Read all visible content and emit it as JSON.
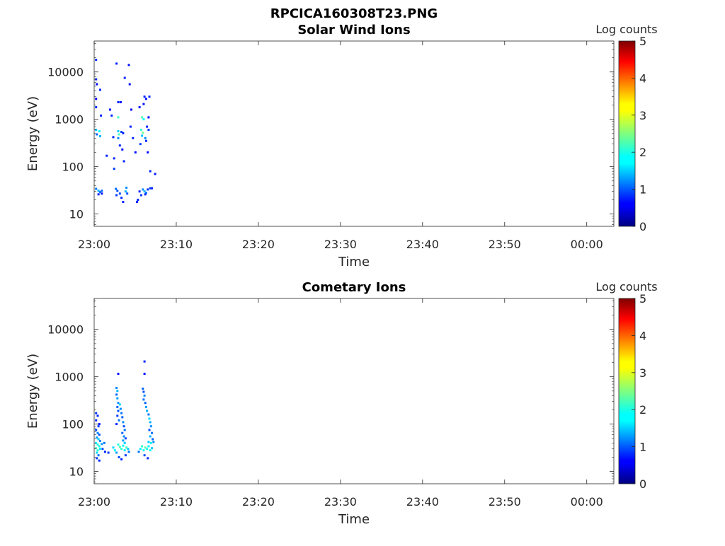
{
  "figure_title": "RPCICA160308T23.PNG",
  "chart_data": [
    {
      "type": "heatmap",
      "title": "Solar Wind Ions",
      "xlabel": "Time",
      "ylabel": "Energy (eV)",
      "x_ticks": [
        "23:00",
        "23:10",
        "23:20",
        "23:30",
        "23:40",
        "23:50",
        "00:00"
      ],
      "y_ticks": [
        "10",
        "100",
        "1000",
        "10000"
      ],
      "y_scale": "log",
      "ylim": [
        5.5,
        45000
      ],
      "xlim_minutes": [
        0,
        63.3
      ],
      "colorbar": {
        "label": "Log counts",
        "range": [
          0,
          5
        ],
        "ticks": [
          "0",
          "1",
          "2",
          "3",
          "4",
          "5"
        ],
        "colormap": "jet"
      },
      "cells_desc": "[time_minutes_after_23:00, energy_eV, log_counts]",
      "cells": [
        [
          0.1,
          18000,
          0.8
        ],
        [
          0.1,
          7000,
          0.8
        ],
        [
          0.2,
          5500,
          0.6
        ],
        [
          0.6,
          4200,
          0.8
        ],
        [
          0.1,
          2700,
          0.6
        ],
        [
          0.1,
          1800,
          0.8
        ],
        [
          0.7,
          1200,
          0.8
        ],
        [
          0.1,
          600,
          1.6
        ],
        [
          0.5,
          560,
          1.9
        ],
        [
          0.2,
          480,
          1.1
        ],
        [
          0.6,
          440,
          1.5
        ],
        [
          0.1,
          34,
          1.2
        ],
        [
          0.4,
          31,
          1.5
        ],
        [
          0.6,
          29,
          1.2
        ],
        [
          0.8,
          31,
          1.1
        ],
        [
          0.4,
          26,
          0.8
        ],
        [
          0.8,
          27,
          0.7
        ],
        [
          1.4,
          170,
          0.8
        ],
        [
          1.8,
          1600,
          0.7
        ],
        [
          2.0,
          1200,
          0.8
        ],
        [
          2.2,
          420,
          0.8
        ],
        [
          2.3,
          150,
          0.8
        ],
        [
          2.3,
          90,
          0.9
        ],
        [
          2.6,
          15000,
          0.8
        ],
        [
          2.8,
          2300,
          0.8
        ],
        [
          2.8,
          1100,
          2.2
        ],
        [
          2.8,
          560,
          1.6
        ],
        [
          2.9,
          480,
          2.2
        ],
        [
          2.8,
          400,
          1.3
        ],
        [
          3.1,
          2300,
          0.7
        ],
        [
          3.2,
          540,
          0.9
        ],
        [
          3.4,
          510,
          0.8
        ],
        [
          3.0,
          280,
          0.8
        ],
        [
          3.3,
          230,
          0.7
        ],
        [
          3.5,
          130,
          0.8
        ],
        [
          2.5,
          34,
          1.2
        ],
        [
          2.7,
          31,
          1.0
        ],
        [
          2.6,
          25,
          0.9
        ],
        [
          3.0,
          27,
          1.0
        ],
        [
          3.2,
          22,
          0.8
        ],
        [
          3.4,
          18,
          0.8
        ],
        [
          3.8,
          36,
          1.3
        ],
        [
          3.7,
          30,
          1.5
        ],
        [
          3.9,
          27,
          1.0
        ],
        [
          3.6,
          7500,
          0.8
        ],
        [
          4.1,
          14000,
          0.7
        ],
        [
          4.2,
          5500,
          0.7
        ],
        [
          4.4,
          1600,
          0.6
        ],
        [
          4.3,
          700,
          0.8
        ],
        [
          4.6,
          400,
          0.8
        ],
        [
          4.9,
          200,
          0.7
        ],
        [
          5.2,
          20,
          0.8
        ],
        [
          5.1,
          18,
          0.8
        ],
        [
          5.4,
          30,
          0.8
        ],
        [
          5.6,
          25,
          0.9
        ],
        [
          5.5,
          300,
          0.9
        ],
        [
          5.4,
          1800,
          0.7
        ],
        [
          5.7,
          1100,
          2.3
        ],
        [
          5.9,
          1000,
          1.9
        ],
        [
          5.6,
          600,
          2.1
        ],
        [
          5.8,
          520,
          2.4
        ],
        [
          5.7,
          450,
          1.6
        ],
        [
          6.1,
          400,
          1.3
        ],
        [
          5.9,
          2100,
          0.7
        ],
        [
          6.0,
          3000,
          0.8
        ],
        [
          6.2,
          2700,
          0.7
        ],
        [
          6.3,
          700,
          0.8
        ],
        [
          6.5,
          600,
          0.9
        ],
        [
          6.2,
          350,
          0.8
        ],
        [
          6.4,
          200,
          0.7
        ],
        [
          6.5,
          1100,
          0.6
        ],
        [
          5.8,
          33,
          1.3
        ],
        [
          6.0,
          30,
          1.5
        ],
        [
          6.2,
          28,
          1.2
        ],
        [
          6.4,
          33,
          0.9
        ],
        [
          6.7,
          35,
          0.9
        ],
        [
          6.9,
          35,
          0.8
        ],
        [
          6.6,
          3000,
          0.8
        ],
        [
          6.7,
          80,
          0.8
        ],
        [
          7.3,
          70,
          0.7
        ],
        [
          6.1,
          26,
          0.8
        ]
      ]
    },
    {
      "type": "heatmap",
      "title": "Cometary Ions",
      "xlabel": "Time",
      "ylabel": "Energy (eV)",
      "x_ticks": [
        "23:00",
        "23:10",
        "23:20",
        "23:30",
        "23:40",
        "23:50",
        "00:00"
      ],
      "y_ticks": [
        "10",
        "100",
        "1000",
        "10000"
      ],
      "y_scale": "log",
      "ylim": [
        5.5,
        45000
      ],
      "xlim_minutes": [
        0,
        63.3
      ],
      "colorbar": {
        "label": "Log counts",
        "range": [
          0,
          5
        ],
        "ticks": [
          "0",
          "1",
          "2",
          "3",
          "4",
          "5"
        ],
        "colormap": "jet"
      },
      "cells_desc": "[time_minutes_after_23:00, energy_eV, log_counts]",
      "cells": [
        [
          0.1,
          170,
          0.9
        ],
        [
          0.3,
          150,
          0.8
        ],
        [
          0.1,
          120,
          0.8
        ],
        [
          0.4,
          90,
          0.9
        ],
        [
          0.1,
          75,
          1.0
        ],
        [
          0.3,
          65,
          1.3
        ],
        [
          0.5,
          60,
          1.0
        ],
        [
          0.2,
          52,
          1.4
        ],
        [
          0.4,
          48,
          1.6
        ],
        [
          0.6,
          44,
          1.3
        ],
        [
          0.1,
          40,
          1.8
        ],
        [
          0.3,
          37,
          2.0
        ],
        [
          0.5,
          34,
          2.0
        ],
        [
          0.8,
          38,
          1.4
        ],
        [
          1.1,
          40,
          1.2
        ],
        [
          0.1,
          31,
          2.2
        ],
        [
          0.3,
          28,
          2.1
        ],
        [
          0.6,
          30,
          1.8
        ],
        [
          0.2,
          25,
          1.7
        ],
        [
          0.4,
          22,
          1.2
        ],
        [
          0.2,
          19,
          0.9
        ],
        [
          0.5,
          17,
          0.8
        ],
        [
          0.9,
          30,
          1.0
        ],
        [
          1.2,
          26,
          0.8
        ],
        [
          0.5,
          100,
          0.7
        ],
        [
          1.6,
          25,
          0.9
        ],
        [
          2.2,
          32,
          1.7
        ],
        [
          2.4,
          28,
          1.9
        ],
        [
          2.6,
          25,
          1.4
        ],
        [
          2.8,
          37,
          2.0
        ],
        [
          3.0,
          33,
          2.3
        ],
        [
          3.2,
          30,
          2.1
        ],
        [
          3.4,
          35,
          1.9
        ],
        [
          3.6,
          28,
          1.8
        ],
        [
          3.8,
          32,
          2.2
        ],
        [
          4.0,
          30,
          1.6
        ],
        [
          4.1,
          26,
          1.2
        ],
        [
          2.9,
          20,
          1.0
        ],
        [
          3.2,
          18,
          0.8
        ],
        [
          3.7,
          22,
          0.9
        ],
        [
          2.6,
          580,
          1.3
        ],
        [
          2.7,
          500,
          1.5
        ],
        [
          2.6,
          420,
          1.1
        ],
        [
          2.7,
          350,
          1.4
        ],
        [
          2.8,
          280,
          1.3
        ],
        [
          2.7,
          230,
          1.1
        ],
        [
          2.8,
          190,
          1.0
        ],
        [
          2.7,
          150,
          0.9
        ],
        [
          2.9,
          120,
          1.2
        ],
        [
          2.6,
          100,
          0.8
        ],
        [
          3.0,
          260,
          1.7
        ],
        [
          3.1,
          210,
          1.3
        ],
        [
          3.2,
          170,
          1.2
        ],
        [
          3.3,
          140,
          1.1
        ],
        [
          3.4,
          110,
          1.3
        ],
        [
          3.5,
          90,
          1.0
        ],
        [
          3.6,
          75,
          1.2
        ],
        [
          3.3,
          65,
          1.1
        ],
        [
          3.5,
          55,
          1.3
        ],
        [
          3.7,
          50,
          1.0
        ],
        [
          3.4,
          45,
          1.4
        ],
        [
          3.6,
          40,
          1.6
        ],
        [
          2.8,
          1150,
          0.7
        ],
        [
          5.5,
          30,
          1.8
        ],
        [
          5.7,
          34,
          2.1
        ],
        [
          5.9,
          28,
          1.9
        ],
        [
          6.1,
          32,
          2.3
        ],
        [
          6.3,
          30,
          2.0
        ],
        [
          6.5,
          34,
          1.8
        ],
        [
          6.7,
          28,
          1.9
        ],
        [
          6.9,
          31,
          1.6
        ],
        [
          5.3,
          26,
          1.2
        ],
        [
          6.0,
          22,
          1.0
        ],
        [
          6.4,
          19,
          0.8
        ],
        [
          5.8,
          560,
          1.1
        ],
        [
          5.9,
          480,
          1.0
        ],
        [
          6.0,
          400,
          1.3
        ],
        [
          5.9,
          330,
          1.2
        ],
        [
          6.1,
          280,
          1.1
        ],
        [
          6.2,
          230,
          1.4
        ],
        [
          6.3,
          190,
          1.5
        ],
        [
          6.5,
          160,
          1.2
        ],
        [
          6.6,
          130,
          1.7
        ],
        [
          6.7,
          110,
          1.5
        ],
        [
          6.8,
          90,
          1.3
        ],
        [
          6.6,
          75,
          1.0
        ],
        [
          6.9,
          65,
          1.2
        ],
        [
          6.7,
          55,
          1.5
        ],
        [
          7.0,
          48,
          1.1
        ],
        [
          6.5,
          42,
          1.6
        ],
        [
          6.8,
          40,
          1.8
        ],
        [
          7.1,
          42,
          1.3
        ],
        [
          6.0,
          2100,
          0.8
        ],
        [
          6.0,
          1150,
          0.7
        ]
      ]
    }
  ]
}
